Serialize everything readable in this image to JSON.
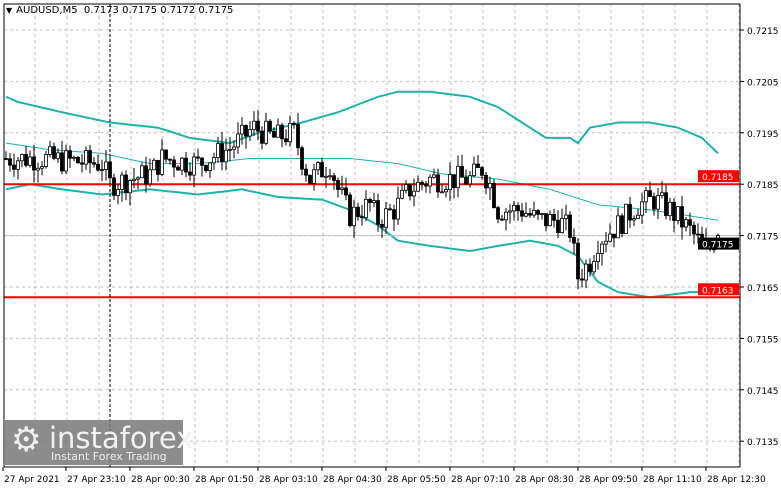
{
  "header": {
    "symbol": "AUDUSD,M5",
    "ohlc": "0.7173 0.7175 0.7172 0.7175"
  },
  "logo": {
    "name": "instaforex",
    "tagline": "Instant Forex Trading"
  },
  "colors": {
    "bullish_body": "#ffffff",
    "bearish_body": "#000000",
    "bands": "#20b2aa",
    "level_lines": "#ff0000",
    "current_price_label": "#000000",
    "grid": "#c0c0c0"
  },
  "chart_data": {
    "type": "candlestick",
    "title": "AUDUSD,M5",
    "timeframe_min": 5,
    "ylim": [
      0.713,
      0.722
    ],
    "grid": true,
    "y_ticks": [
      "0.7215",
      "0.7205",
      "0.7195",
      "0.7185",
      "0.7175",
      "0.7165",
      "0.7155",
      "0.7145",
      "0.7135"
    ],
    "x_ticks": [
      "27 Apr 2021",
      "27 Apr 23:10",
      "28 Apr 00:30",
      "28 Apr 01:50",
      "28 Apr 03:10",
      "28 Apr 04:30",
      "28 Apr 05:50",
      "28 Apr 07:10",
      "28 Apr 08:30",
      "28 Apr 09:50",
      "28 Apr 11:10",
      "28 Apr 12:30"
    ],
    "x_tick_times": [
      "27 Apr 21:55",
      "27 Apr 23:10",
      "28 Apr 00:30",
      "28 Apr 01:50",
      "28 Apr 03:10",
      "28 Apr 04:30",
      "28 Apr 05:50",
      "28 Apr 07:10",
      "28 Apr 08:30",
      "28 Apr 09:50",
      "28 Apr 11:10",
      "28 Apr 12:30"
    ],
    "last_bar": {
      "open": 0.7173,
      "high": 0.7175,
      "low": 0.7172,
      "close": 0.7175
    },
    "current_price": {
      "value": 0.7175,
      "label": "0.7175"
    },
    "levels": [
      {
        "value": 0.7185,
        "label": "0.7185"
      },
      {
        "value": 0.7163,
        "label": "0.7163"
      }
    ],
    "vertical_marker_time": "28 Apr 00:05",
    "close_path": [
      [
        "27 Apr 21:55",
        0.719
      ],
      [
        "27 Apr 22:40",
        0.719
      ],
      [
        "27 Apr 23:55",
        0.7189
      ],
      [
        "28 Apr 00:05",
        0.7185
      ],
      [
        "28 Apr 00:30",
        0.7186
      ],
      [
        "28 Apr 00:55",
        0.7187
      ],
      [
        "28 Apr 01:10",
        0.719
      ],
      [
        "28 Apr 01:55",
        0.7189
      ],
      [
        "28 Apr 02:35",
        0.7192
      ],
      [
        "28 Apr 03:05",
        0.7196
      ],
      [
        "28 Apr 03:30",
        0.7194
      ],
      [
        "28 Apr 03:55",
        0.7195
      ],
      [
        "28 Apr 04:05",
        0.719
      ],
      [
        "28 Apr 04:15",
        0.7186
      ],
      [
        "28 Apr 04:40",
        0.7189
      ],
      [
        "28 Apr 04:50",
        0.7184
      ],
      [
        "28 Apr 05:05",
        0.7179
      ],
      [
        "28 Apr 05:30",
        0.7181
      ],
      [
        "28 Apr 05:40",
        0.7178
      ],
      [
        "28 Apr 06:00",
        0.718
      ],
      [
        "28 Apr 06:20",
        0.7184
      ],
      [
        "28 Apr 06:45",
        0.7186
      ],
      [
        "28 Apr 07:35",
        0.7186
      ],
      [
        "28 Apr 07:50",
        0.7188
      ],
      [
        "28 Apr 08:00",
        0.7185
      ],
      [
        "28 Apr 08:10",
        0.718
      ],
      [
        "28 Apr 08:40",
        0.718
      ],
      [
        "28 Apr 09:00",
        0.7178
      ],
      [
        "28 Apr 09:25",
        0.7178
      ],
      [
        "28 Apr 09:40",
        0.7176
      ],
      [
        "28 Apr 09:50",
        0.7167
      ],
      [
        "28 Apr 10:05",
        0.717
      ],
      [
        "28 Apr 10:15",
        0.7174
      ],
      [
        "28 Apr 10:40",
        0.7177
      ],
      [
        "28 Apr 11:05",
        0.7181
      ],
      [
        "28 Apr 11:25",
        0.7182
      ],
      [
        "28 Apr 11:45",
        0.718
      ],
      [
        "28 Apr 12:10",
        0.7176
      ],
      [
        "28 Apr 12:30",
        0.7172
      ],
      [
        "28 Apr 12:45",
        0.7175
      ]
    ],
    "bollinger": {
      "upper": [
        [
          "27 Apr 21:55",
          0.7202
        ],
        [
          "27 Apr 22:10",
          0.7201
        ],
        [
          "27 Apr 23:05",
          0.7199
        ],
        [
          "28 Apr 00:05",
          0.7197
        ],
        [
          "28 Apr 01:05",
          0.7196
        ],
        [
          "28 Apr 01:45",
          0.7194
        ],
        [
          "28 Apr 02:35",
          0.7193
        ],
        [
          "28 Apr 03:10",
          0.7195
        ],
        [
          "28 Apr 04:05",
          0.7197
        ],
        [
          "28 Apr 04:50",
          0.7199
        ],
        [
          "28 Apr 05:40",
          0.7202
        ],
        [
          "28 Apr 06:05",
          0.7203
        ],
        [
          "28 Apr 06:45",
          0.7203
        ],
        [
          "28 Apr 07:35",
          0.7202
        ],
        [
          "28 Apr 08:10",
          0.72
        ],
        [
          "28 Apr 08:40",
          0.7197
        ],
        [
          "28 Apr 09:10",
          0.7194
        ],
        [
          "28 Apr 09:40",
          0.7194
        ],
        [
          "28 Apr 09:50",
          0.7193
        ],
        [
          "28 Apr 10:05",
          0.7196
        ],
        [
          "28 Apr 10:40",
          0.7197
        ],
        [
          "28 Apr 11:20",
          0.7197
        ],
        [
          "28 Apr 11:55",
          0.7196
        ],
        [
          "28 Apr 12:25",
          0.7194
        ],
        [
          "28 Apr 12:45",
          0.7191
        ]
      ],
      "middle": [
        [
          "27 Apr 21:55",
          0.7193
        ],
        [
          "27 Apr 22:50",
          0.71917
        ],
        [
          "27 Apr 23:55",
          0.7191
        ],
        [
          "28 Apr 00:55",
          0.7189
        ],
        [
          "28 Apr 01:55",
          0.7189
        ],
        [
          "28 Apr 03:00",
          0.719
        ],
        [
          "28 Apr 04:05",
          0.719
        ],
        [
          "28 Apr 05:05",
          0.719
        ],
        [
          "28 Apr 06:05",
          0.7189
        ],
        [
          "28 Apr 07:00",
          0.7187
        ],
        [
          "28 Apr 08:10",
          0.7186
        ],
        [
          "28 Apr 09:15",
          0.7184
        ],
        [
          "28 Apr 10:15",
          0.7181
        ],
        [
          "28 Apr 11:20",
          0.718
        ],
        [
          "28 Apr 12:45",
          0.7178
        ]
      ],
      "lower": [
        [
          "27 Apr 21:55",
          0.7184
        ],
        [
          "27 Apr 22:25",
          0.7185
        ],
        [
          "27 Apr 23:05",
          0.7184
        ],
        [
          "27 Apr 23:55",
          0.7183
        ],
        [
          "28 Apr 00:55",
          0.7184
        ],
        [
          "28 Apr 01:55",
          0.7183
        ],
        [
          "28 Apr 02:50",
          0.7184
        ],
        [
          "28 Apr 03:35",
          0.71825
        ],
        [
          "28 Apr 04:30",
          0.7182
        ],
        [
          "28 Apr 05:05",
          0.718
        ],
        [
          "28 Apr 05:40",
          0.7177
        ],
        [
          "28 Apr 06:05",
          0.7174
        ],
        [
          "28 Apr 06:45",
          0.7173
        ],
        [
          "28 Apr 07:35",
          0.7172
        ],
        [
          "28 Apr 08:10",
          0.7173
        ],
        [
          "28 Apr 08:50",
          0.7174
        ],
        [
          "28 Apr 09:25",
          0.7173
        ],
        [
          "28 Apr 09:50",
          0.7171
        ],
        [
          "28 Apr 10:15",
          0.7166
        ],
        [
          "28 Apr 10:40",
          0.7164
        ],
        [
          "28 Apr 11:20",
          0.7163
        ],
        [
          "28 Apr 12:10",
          0.7164
        ],
        [
          "28 Apr 12:45",
          0.7164
        ]
      ]
    }
  }
}
